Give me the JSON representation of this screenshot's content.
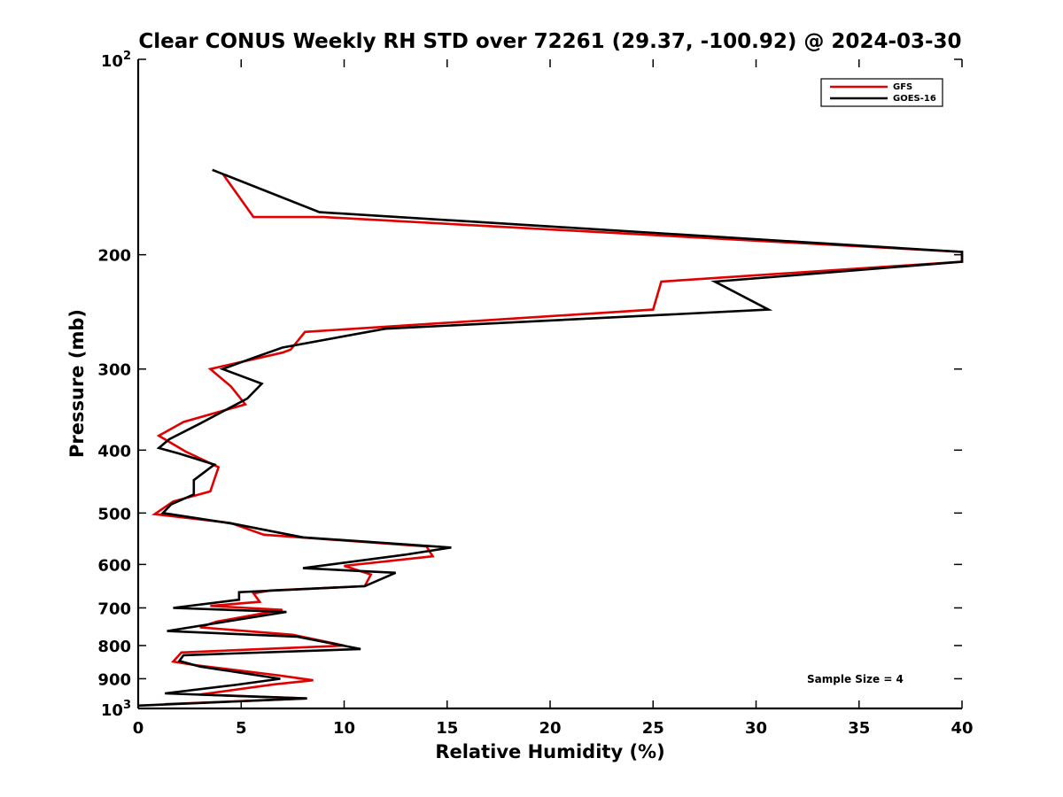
{
  "chart_data": {
    "type": "line",
    "title": "Clear CONUS Weekly RH STD over 72261 (29.37, -100.92) @ 2024-03-30",
    "xlabel": "Relative Humidity (%)",
    "ylabel": "Pressure (mb)",
    "xlim": [
      0,
      40
    ],
    "ylim": [
      100,
      1000
    ],
    "yscale": "log",
    "y_reversed": true,
    "x_ticks": [
      "0",
      "5",
      "10",
      "15",
      "20",
      "25",
      "30",
      "35",
      "40"
    ],
    "y_ticks": [
      {
        "value": 100,
        "base": "10",
        "exp": "2"
      },
      {
        "value": 200,
        "label": "200"
      },
      {
        "value": 300,
        "label": "300"
      },
      {
        "value": 400,
        "label": "400"
      },
      {
        "value": 500,
        "label": "500"
      },
      {
        "value": 600,
        "label": "600"
      },
      {
        "value": 700,
        "label": "700"
      },
      {
        "value": 800,
        "label": "800"
      },
      {
        "value": 900,
        "label": "900"
      },
      {
        "value": 1000,
        "base": "10",
        "exp": "3"
      }
    ],
    "grid": false,
    "legend_position": "top-right",
    "annotation": "Sample Size = 4",
    "series": [
      {
        "name": "GFS",
        "color": "#e00000",
        "points": [
          [
            4.1,
            150
          ],
          [
            5.6,
            175
          ],
          [
            9.0,
            175
          ],
          [
            40,
            198
          ],
          [
            40,
            205
          ],
          [
            25.4,
            220
          ],
          [
            25.0,
            243
          ],
          [
            8.1,
            263
          ],
          [
            7.4,
            280
          ],
          [
            7.0,
            283
          ],
          [
            3.5,
            300
          ],
          [
            4.5,
            319
          ],
          [
            5.2,
            340
          ],
          [
            2.2,
            362
          ],
          [
            1.0,
            380
          ],
          [
            2.3,
            402
          ],
          [
            3.9,
            425
          ],
          [
            3.5,
            463
          ],
          [
            1.7,
            480
          ],
          [
            0.8,
            502
          ],
          [
            4.5,
            518
          ],
          [
            6.1,
            540
          ],
          [
            14.0,
            563
          ],
          [
            14.3,
            583
          ],
          [
            10.0,
            603
          ],
          [
            11.3,
            622
          ],
          [
            11.0,
            648
          ],
          [
            6.4,
            658
          ],
          [
            5.6,
            665
          ],
          [
            5.9,
            685
          ],
          [
            3.5,
            695
          ],
          [
            7.0,
            705
          ],
          [
            3.8,
            735
          ],
          [
            3.0,
            750
          ],
          [
            7.5,
            770
          ],
          [
            10.0,
            800
          ],
          [
            2.1,
            820
          ],
          [
            1.7,
            847
          ],
          [
            2.7,
            857
          ],
          [
            6.9,
            890
          ],
          [
            8.5,
            905
          ],
          [
            6.6,
            918
          ],
          [
            3.0,
            952
          ],
          [
            8.2,
            965
          ],
          [
            1.3,
            985
          ]
        ]
      },
      {
        "name": "GOES-16",
        "color": "#000000",
        "points": [
          [
            3.6,
            148
          ],
          [
            8.8,
            172
          ],
          [
            40,
            198
          ],
          [
            40,
            205
          ],
          [
            28.0,
            220
          ],
          [
            30.6,
            243
          ],
          [
            12.0,
            260
          ],
          [
            7.0,
            278
          ],
          [
            5.5,
            289
          ],
          [
            4.1,
            300
          ],
          [
            6.0,
            316
          ],
          [
            5.3,
            333
          ],
          [
            3.0,
            364
          ],
          [
            1.5,
            385
          ],
          [
            1.0,
            397
          ],
          [
            2.0,
            405
          ],
          [
            3.7,
            421
          ],
          [
            2.7,
            445
          ],
          [
            2.7,
            468
          ],
          [
            1.6,
            485
          ],
          [
            1.2,
            500
          ],
          [
            4.7,
            520
          ],
          [
            8.0,
            545
          ],
          [
            15.2,
            565
          ],
          [
            12.9,
            580
          ],
          [
            8.0,
            608
          ],
          [
            12.5,
            618
          ],
          [
            11.0,
            648
          ],
          [
            4.9,
            662
          ],
          [
            4.9,
            680
          ],
          [
            1.7,
            700
          ],
          [
            7.2,
            710
          ],
          [
            1.4,
            760
          ],
          [
            7.7,
            775
          ],
          [
            10.8,
            810
          ],
          [
            2.2,
            828
          ],
          [
            2.0,
            845
          ],
          [
            3.0,
            862
          ],
          [
            6.9,
            900
          ],
          [
            4.7,
            920
          ],
          [
            1.3,
            948
          ],
          [
            8.2,
            965
          ],
          [
            0.0,
            990
          ]
        ]
      }
    ]
  }
}
